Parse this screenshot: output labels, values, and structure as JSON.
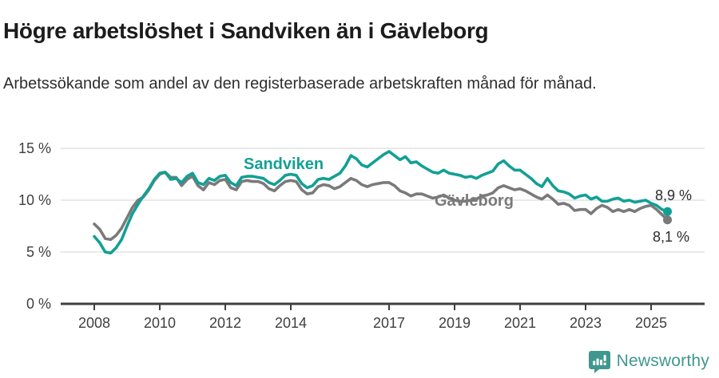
{
  "header": {
    "title": "Högre arbetslöshet i Sandviken än i Gävleborg",
    "subtitle": "Arbetssökande som andel av den registerbaserade arbetskraften månad för månad."
  },
  "chart_data": {
    "type": "line",
    "title": "Högre arbetslöshet i Sandviken än i Gävleborg",
    "subtitle": "Arbetssökande som andel av den registerbaserade arbetskraften månad för månad.",
    "unit": "%",
    "x_start": 2008.0,
    "x_step_months": 2,
    "x_ticks": [
      2008,
      2010,
      2012,
      2014,
      2017,
      2019,
      2021,
      2023,
      2025
    ],
    "y_ticks": [
      0,
      5,
      10,
      15
    ],
    "y_tick_labels": [
      "0 %",
      "5 %",
      "10 %",
      "15 %"
    ],
    "ylim": [
      0,
      15.5
    ],
    "grid": "horizontal",
    "legend_position": "inline-labels",
    "colors": {
      "axis": "#3f3f3f",
      "grid": "#dcdcdc"
    },
    "series": [
      {
        "name": "Gävleborg",
        "color": "#7a7a7a",
        "end_value_label": "8,1 %",
        "values": [
          7.7,
          7.2,
          6.3,
          6.2,
          6.6,
          7.3,
          8.3,
          9.3,
          10.0,
          10.3,
          11.0,
          11.9,
          12.5,
          12.7,
          12.2,
          12.2,
          11.4,
          12.0,
          12.3,
          11.4,
          11.0,
          11.7,
          11.5,
          11.9,
          12.0,
          11.2,
          11.0,
          11.8,
          11.9,
          11.8,
          11.8,
          11.6,
          11.1,
          10.9,
          11.4,
          11.8,
          11.9,
          11.8,
          11.0,
          10.6,
          10.7,
          11.3,
          11.5,
          11.4,
          11.1,
          11.3,
          11.7,
          12.1,
          11.9,
          11.5,
          11.3,
          11.5,
          11.6,
          11.7,
          11.7,
          11.4,
          10.9,
          10.7,
          10.4,
          10.6,
          10.6,
          10.4,
          10.2,
          10.3,
          10.5,
          10.2,
          10.0,
          9.9,
          9.9,
          10.0,
          10.1,
          10.4,
          10.5,
          10.7,
          11.2,
          11.4,
          11.2,
          11.0,
          11.1,
          10.9,
          10.6,
          10.3,
          10.1,
          10.5,
          10.1,
          9.6,
          9.7,
          9.5,
          9.0,
          9.1,
          9.1,
          8.7,
          9.2,
          9.5,
          9.3,
          8.9,
          9.1,
          8.9,
          9.1,
          8.9,
          9.2,
          9.4,
          9.5,
          9.1,
          8.6,
          8.1
        ]
      },
      {
        "name": "Sandviken",
        "color": "#12a095",
        "end_value_label": "8,9 %",
        "values": [
          6.5,
          5.9,
          5.0,
          4.9,
          5.4,
          6.2,
          7.5,
          8.7,
          9.6,
          10.4,
          11.1,
          12.0,
          12.6,
          12.7,
          12.0,
          12.1,
          11.7,
          12.3,
          12.6,
          11.7,
          11.5,
          12.1,
          11.9,
          12.3,
          12.4,
          11.7,
          11.4,
          12.2,
          12.3,
          12.3,
          12.2,
          12.1,
          11.7,
          11.5,
          11.9,
          12.4,
          12.5,
          12.4,
          11.6,
          11.2,
          11.4,
          12.0,
          12.1,
          12.0,
          12.3,
          12.6,
          13.3,
          14.3,
          14.0,
          13.4,
          13.2,
          13.6,
          14.0,
          14.4,
          14.7,
          14.3,
          13.9,
          14.2,
          13.6,
          13.7,
          13.3,
          13.0,
          12.7,
          12.6,
          12.9,
          12.6,
          12.5,
          12.4,
          12.2,
          12.3,
          12.1,
          12.4,
          12.6,
          12.8,
          13.5,
          13.8,
          13.3,
          12.9,
          12.9,
          12.5,
          12.1,
          11.6,
          11.3,
          12.1,
          11.4,
          10.9,
          10.8,
          10.6,
          10.2,
          10.4,
          10.5,
          10.1,
          10.3,
          9.9,
          9.9,
          10.1,
          10.2,
          9.9,
          10.0,
          9.8,
          9.9,
          10.0,
          9.7,
          9.5,
          9.1,
          8.9
        ]
      }
    ]
  },
  "footer": {
    "brand": "Newsworthy",
    "brand_color": "#3f988f",
    "logo_icon": "newsworthy-speech-bubble-bar-chart-icon"
  }
}
